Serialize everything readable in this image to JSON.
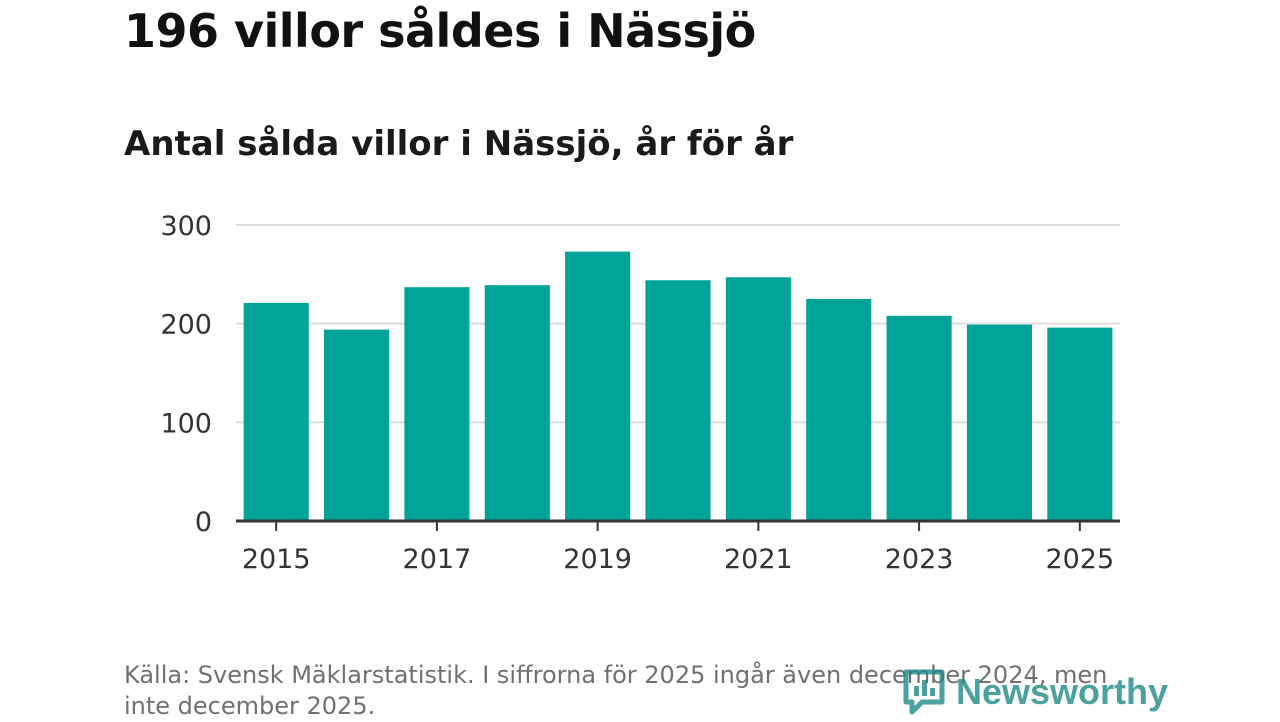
{
  "headline": "196 villor såldes i Nässjö",
  "subtitle": "Antal sålda villor i Nässjö, år för år",
  "source": "Källa: Svensk Mäklarstatistik. I siffrorna för 2025 ingår även december 2024, men inte december 2025.",
  "logo": {
    "text": "Newsworthy",
    "icon": "newsworthy-logo-icon"
  },
  "colors": {
    "bar": "#00a398",
    "grid": "#dddddd",
    "axis": "#333333",
    "text": "#333333",
    "logo": "#1f8a87"
  },
  "chart_data": {
    "type": "bar",
    "title": "Antal sålda villor i Nässjö, år för år",
    "categories": [
      "2015",
      "2016",
      "2017",
      "2018",
      "2019",
      "2020",
      "2021",
      "2022",
      "2023",
      "2024",
      "2025"
    ],
    "values": [
      221,
      194,
      237,
      239,
      273,
      244,
      247,
      225,
      208,
      199,
      196
    ],
    "xlabel": "",
    "ylabel": "",
    "ylim": [
      0,
      300
    ],
    "yticks": [
      "0",
      "100",
      "200",
      "300"
    ],
    "xticks": [
      "2015",
      "2017",
      "2019",
      "2021",
      "2023",
      "2025"
    ],
    "grid": true,
    "legend": "none"
  }
}
